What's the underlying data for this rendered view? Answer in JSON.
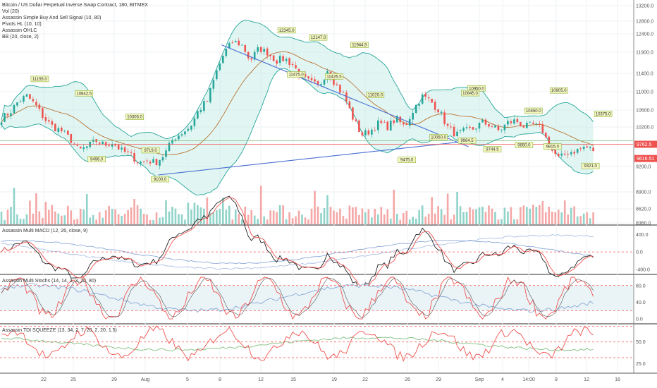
{
  "header": {
    "title": "Bitcoin / US Dollar Perpetual Inverse Swap Contract, 180, BITMEX",
    "studies": [
      "Vol (20)",
      "Assassin Simple Buy And Sell Signal (10, 80)",
      "Pivots HL (10, 10)",
      "Assassin OHLC",
      "BB (20, close, 2)"
    ]
  },
  "panes": {
    "macd_label": "Assassin Multi MACD (12, 26, close, 9)",
    "stoch_label": "Assassin Multi Stochs (14, 14, 3, 3, 20, 80)",
    "tdi_label": "Assassin TDI SQUEEZE (13, 34, 2, 7, 20, 2, 20, 1.5)"
  },
  "colors": {
    "up": "#26a69a",
    "down": "#ef5350",
    "trendline": "#4a6fd4",
    "bb": "#26a69a",
    "bb_fill": "#c8ede8",
    "basis": "#b5651d",
    "last_price_bg": "#ef5350",
    "pivot_bg": "#f5f7c0",
    "pivot_border": "#8ab43a"
  },
  "chart_data": {
    "type": "candlestick",
    "title": "Bitcoin / US Dollar Perpetual Inverse Swap Contract, 180, BITMEX",
    "x_ticks": [
      "22",
      "25",
      "29",
      "Aug",
      "5",
      "8",
      "12",
      "15",
      "19",
      "22",
      "26",
      "29",
      "Sep",
      "4",
      "14:00",
      "9",
      "12",
      "16"
    ],
    "price_axis": {
      "ticks": [
        13200.0,
        12800.0,
        12400.0,
        11900.0,
        11400.0,
        11000.0,
        10600.0,
        10200.0,
        9200.0,
        8900.0,
        8620.0,
        8360.0
      ],
      "ylim": [
        8300,
        13300
      ]
    },
    "price_markers": [
      {
        "label": "9762.5",
        "value": 9762.5
      },
      {
        "label": "9616.51",
        "value": 9616.51
      }
    ],
    "pivots_high": [
      {
        "label": "11155.0",
        "value": 11155
      },
      {
        "label": "10842.5",
        "value": 10842
      },
      {
        "label": "10305.0",
        "value": 10305
      },
      {
        "label": "12345.0",
        "value": 12345
      },
      {
        "label": "12147.0",
        "value": 12147
      },
      {
        "label": "11944.5",
        "value": 11944
      },
      {
        "label": "10950.0",
        "value": 10950
      },
      {
        "label": "10450.0",
        "value": 10450
      },
      {
        "label": "10905.0",
        "value": 10905
      },
      {
        "label": "10845.0",
        "value": 10845
      },
      {
        "label": "10375.0",
        "value": 10375
      }
    ],
    "pivots_low": [
      {
        "label": "9496.0",
        "value": 9496
      },
      {
        "label": "9719.0",
        "value": 9719
      },
      {
        "label": "9100.0",
        "value": 9100
      },
      {
        "label": "11475.0",
        "value": 11475
      },
      {
        "label": "11426.5",
        "value": 11426
      },
      {
        "label": "11020.0",
        "value": 11020
      },
      {
        "label": "10050.0",
        "value": 10050
      },
      {
        "label": "9964.5",
        "value": 9964
      },
      {
        "label": "9475.0",
        "value": 9475
      },
      {
        "label": "9744.5",
        "value": 9744
      },
      {
        "label": "9850.0",
        "value": 9850
      },
      {
        "label": "9815.0",
        "value": 9815
      },
      {
        "label": "9321.0",
        "value": 9321
      }
    ],
    "close_path": [
      10400,
      10550,
      10800,
      10900,
      10700,
      10400,
      10200,
      10100,
      9900,
      9600,
      9700,
      9850,
      9750,
      9800,
      9600,
      9500,
      9300,
      9350,
      9300,
      9500,
      9900,
      10050,
      10200,
      10600,
      10800,
      11400,
      11900,
      12200,
      12100,
      11700,
      12000,
      11900,
      11700,
      11750,
      11600,
      11300,
      11200,
      11100,
      11500,
      11150,
      10900,
      10400,
      10000,
      10100,
      10300,
      10200,
      10400,
      10200,
      10600,
      10900,
      10800,
      10600,
      10200,
      10000,
      10100,
      10150,
      10300,
      10250,
      10100,
      10300,
      10350,
      10200,
      10250,
      10150,
      9650,
      9400,
      9550,
      9600,
      9700,
      9615
    ],
    "trendlines": [
      {
        "from": [
          0.5,
          9100
        ],
        "to": [
          1.48,
          9844
        ]
      },
      {
        "from": [
          0.7,
          12100
        ],
        "to": [
          1.48,
          9700
        ]
      }
    ],
    "volume_axis": {
      "ticks": []
    },
    "macd": {
      "ylim": [
        -500,
        600
      ],
      "ticks": [
        400.0,
        0.0,
        -400.0
      ]
    },
    "stoch": {
      "ylim": [
        -10,
        105
      ],
      "ticks": [
        80.0,
        40.0,
        0.0
      ],
      "levels": [
        80,
        20
      ]
    },
    "tdi": {
      "ylim": [
        15,
        70
      ],
      "ticks": [
        50.0,
        25.0
      ],
      "levels": [
        68,
        50,
        32
      ]
    }
  }
}
